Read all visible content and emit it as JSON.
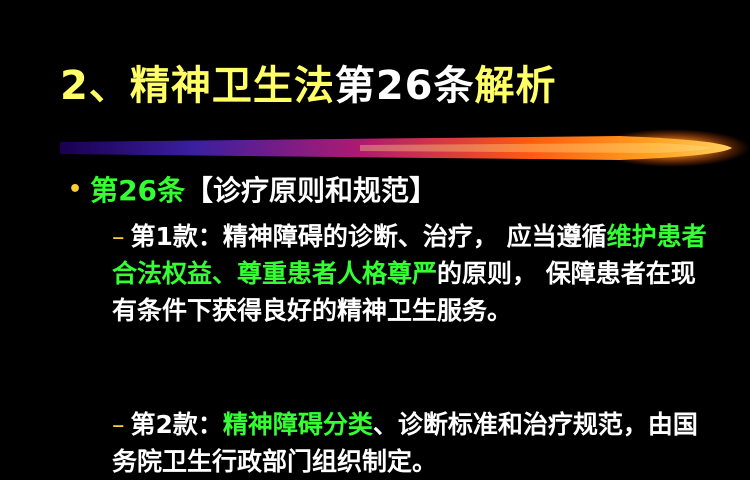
{
  "title": {
    "part1": "2、精神卫生法",
    "part2": "第26条",
    "part3": "解析"
  },
  "bullet": {
    "article": "第26条",
    "heading": "【诊疗原则和规范】"
  },
  "clause1": {
    "dash": "–",
    "text1": "第1款：精神障碍的诊断、治疗，  应当遵循",
    "highlight": "维护患者合法权益、尊重患者人格尊严",
    "text2": "的原则，  保障患者在现有条件下获得良好的精神卫生服务。"
  },
  "clause2": {
    "dash": "–",
    "text1": "第2款：",
    "highlight": "精神障碍分类",
    "text2": "、诊断标准和治疗规范，由国务院卫生行政部门组织制定。"
  },
  "colors": {
    "background": "#000000",
    "title_accent": "#ffff66",
    "highlight_green": "#33ff33",
    "bullet_orange": "#ffcc33"
  }
}
